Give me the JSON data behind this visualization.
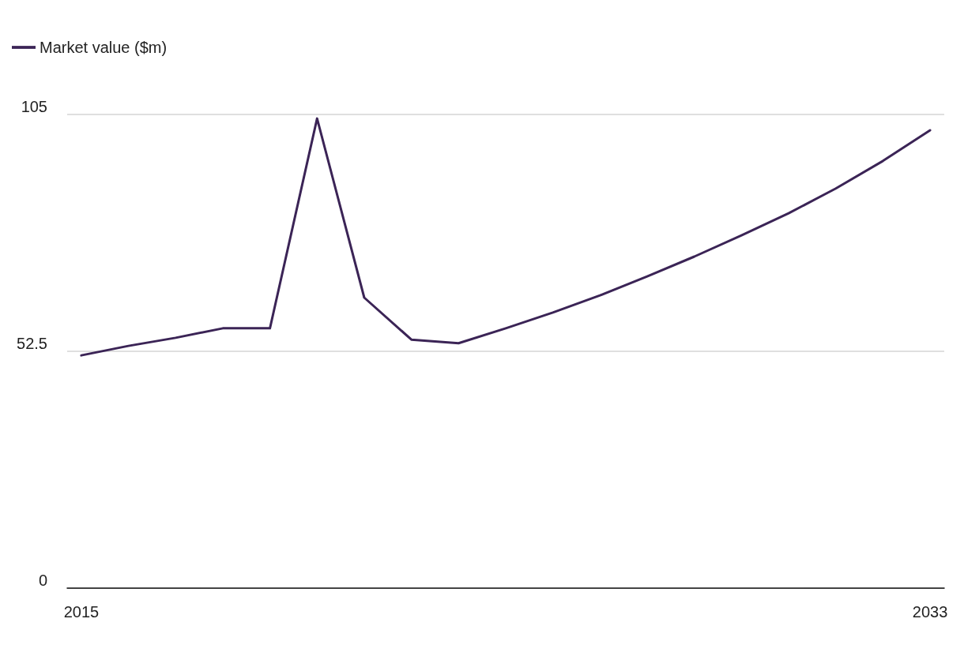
{
  "chart_data": {
    "type": "line",
    "x": [
      2015,
      2016,
      2017,
      2018,
      2019,
      2020,
      2021,
      2022,
      2023,
      2024,
      2025,
      2026,
      2027,
      2028,
      2029,
      2030,
      2031,
      2032,
      2033
    ],
    "series": [
      {
        "name": "Market value ($m)",
        "color": "#3b2456",
        "values": [
          51.6,
          53.7,
          55.5,
          57.6,
          57.6,
          104.1,
          64.4,
          55.1,
          54.3,
          57.6,
          61.1,
          64.9,
          69.1,
          73.5,
          78.2,
          83.1,
          88.6,
          94.7,
          101.5
        ]
      }
    ],
    "xlim": [
      2014.7,
      2033.3
    ],
    "xticks": [
      2015,
      2033
    ],
    "ylim": [
      0,
      105
    ],
    "yticks": [
      0,
      52.5,
      105
    ],
    "grid": "y",
    "legend": "top left",
    "marker": "none",
    "line_style": "solid"
  }
}
